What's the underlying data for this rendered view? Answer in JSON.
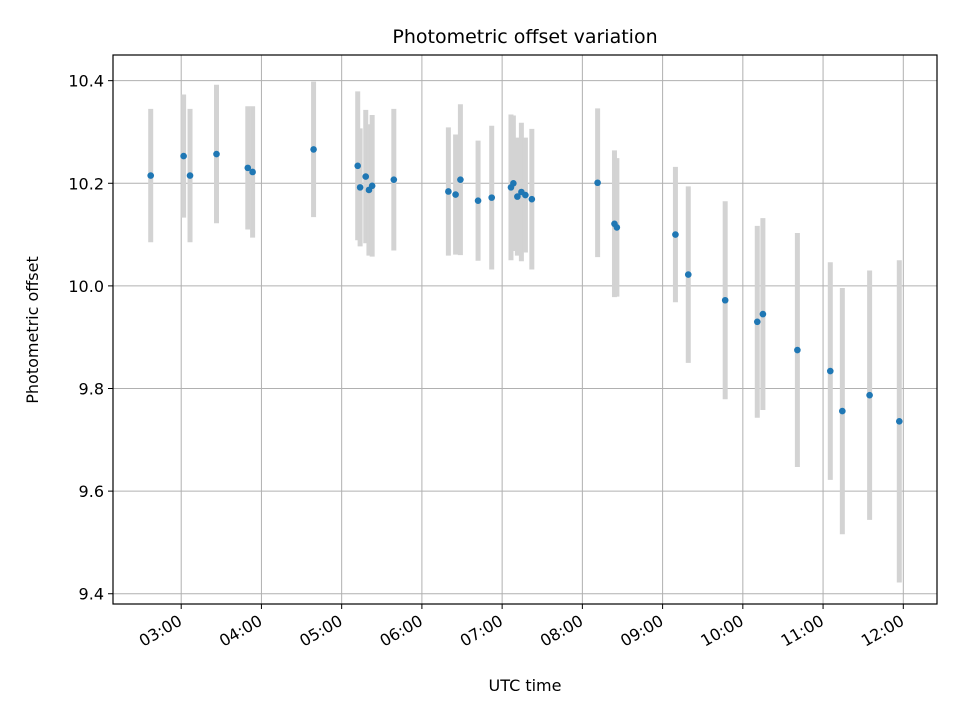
{
  "chart_data": {
    "type": "scatter",
    "title": "Photometric offset variation",
    "xlabel": "UTC time",
    "ylabel": "Photometric offset",
    "x_unit": "hours UTC",
    "xlim": [
      2.15,
      12.42
    ],
    "ylim": [
      9.38,
      10.45
    ],
    "x_ticks": [
      3,
      4,
      5,
      6,
      7,
      8,
      9,
      10,
      11,
      12
    ],
    "x_tick_labels": [
      "03:00",
      "04:00",
      "05:00",
      "06:00",
      "07:00",
      "08:00",
      "09:00",
      "10:00",
      "11:00",
      "12:00"
    ],
    "y_ticks": [
      9.4,
      9.6,
      9.8,
      10.0,
      10.2,
      10.4
    ],
    "y_tick_labels": [
      "9.4",
      "9.6",
      "9.8",
      "10.0",
      "10.2",
      "10.4"
    ],
    "grid": true,
    "marker_color": "#1f77b4",
    "errorbar_color": "#d3d3d3",
    "points": [
      {
        "x": 2.62,
        "y": 10.215,
        "err": 0.13
      },
      {
        "x": 3.03,
        "y": 10.253,
        "err": 0.12
      },
      {
        "x": 3.11,
        "y": 10.215,
        "err": 0.13
      },
      {
        "x": 3.44,
        "y": 10.257,
        "err": 0.135
      },
      {
        "x": 3.83,
        "y": 10.23,
        "err": 0.12
      },
      {
        "x": 3.89,
        "y": 10.222,
        "err": 0.128
      },
      {
        "x": 4.65,
        "y": 10.266,
        "err": 0.132
      },
      {
        "x": 5.2,
        "y": 10.234,
        "err": 0.145
      },
      {
        "x": 5.23,
        "y": 10.192,
        "err": 0.115
      },
      {
        "x": 5.3,
        "y": 10.213,
        "err": 0.13
      },
      {
        "x": 5.34,
        "y": 10.187,
        "err": 0.128
      },
      {
        "x": 5.38,
        "y": 10.195,
        "err": 0.138
      },
      {
        "x": 5.65,
        "y": 10.207,
        "err": 0.138
      },
      {
        "x": 6.33,
        "y": 10.184,
        "err": 0.125
      },
      {
        "x": 6.42,
        "y": 10.178,
        "err": 0.117
      },
      {
        "x": 6.48,
        "y": 10.207,
        "err": 0.147
      },
      {
        "x": 6.7,
        "y": 10.166,
        "err": 0.117
      },
      {
        "x": 6.87,
        "y": 10.172,
        "err": 0.14
      },
      {
        "x": 7.11,
        "y": 10.192,
        "err": 0.142
      },
      {
        "x": 7.14,
        "y": 10.2,
        "err": 0.132
      },
      {
        "x": 7.19,
        "y": 10.174,
        "err": 0.115
      },
      {
        "x": 7.24,
        "y": 10.183,
        "err": 0.135
      },
      {
        "x": 7.29,
        "y": 10.177,
        "err": 0.112
      },
      {
        "x": 7.37,
        "y": 10.169,
        "err": 0.137
      },
      {
        "x": 8.19,
        "y": 10.201,
        "err": 0.145
      },
      {
        "x": 8.4,
        "y": 10.121,
        "err": 0.143
      },
      {
        "x": 8.43,
        "y": 10.114,
        "err": 0.135
      },
      {
        "x": 9.16,
        "y": 10.1,
        "err": 0.132
      },
      {
        "x": 9.32,
        "y": 10.022,
        "err": 0.172
      },
      {
        "x": 9.78,
        "y": 9.972,
        "err": 0.193
      },
      {
        "x": 10.18,
        "y": 9.93,
        "err": 0.187
      },
      {
        "x": 10.25,
        "y": 9.945,
        "err": 0.187
      },
      {
        "x": 10.68,
        "y": 9.875,
        "err": 0.228
      },
      {
        "x": 11.09,
        "y": 9.834,
        "err": 0.212
      },
      {
        "x": 11.24,
        "y": 9.756,
        "err": 0.24
      },
      {
        "x": 11.58,
        "y": 9.787,
        "err": 0.243
      },
      {
        "x": 11.95,
        "y": 9.736,
        "err": 0.314
      }
    ]
  }
}
